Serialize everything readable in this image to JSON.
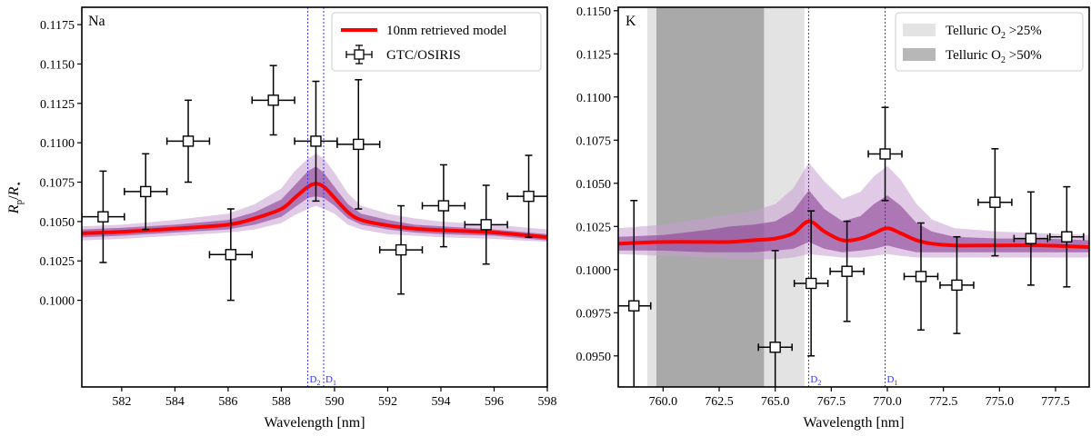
{
  "chart_data": [
    {
      "type": "line",
      "panel_label": "Na",
      "xlabel": "Wavelength [nm]",
      "ylabel_main": "R",
      "ylabel_sub_p": "p",
      "ylabel_div": "/",
      "ylabel_main2": "R",
      "ylabel_sub_star": "⋆",
      "xlim": [
        580.5,
        598.0
      ],
      "ylim": [
        0.0945,
        0.1186
      ],
      "xticks": [
        582,
        584,
        586,
        588,
        590,
        592,
        594,
        596,
        598
      ],
      "yticks": [
        0.1,
        0.1025,
        0.105,
        0.1075,
        0.11,
        0.1125,
        0.115,
        0.1175
      ],
      "ytick_labels": [
        "0.1000",
        "0.1025",
        "0.1050",
        "0.1075",
        "0.1100",
        "0.1125",
        "0.1150",
        "0.1175"
      ],
      "vlines": [
        {
          "x": 588.995,
          "label": "D",
          "sub": "2"
        },
        {
          "x": 589.592,
          "label": "D",
          "sub": "1"
        }
      ],
      "legend": {
        "position": "top-right",
        "entries": [
          {
            "label": "10nm retrieved model",
            "kind": "line",
            "color": "#ff0000"
          },
          {
            "label": "GTC/OSIRIS",
            "kind": "errorbar"
          }
        ]
      },
      "model": {
        "x": [
          580.5,
          582,
          584,
          586,
          587,
          588,
          588.5,
          589,
          589.3,
          589.6,
          590,
          590.5,
          591,
          592,
          593,
          594,
          596,
          598
        ],
        "y": [
          0.10425,
          0.10435,
          0.10455,
          0.1048,
          0.1052,
          0.1058,
          0.1065,
          0.1072,
          0.1074,
          0.1072,
          0.1065,
          0.1056,
          0.1051,
          0.10475,
          0.10455,
          0.10445,
          0.1043,
          0.104
        ],
        "sig1_lo": [
          0.104,
          0.1041,
          0.1043,
          0.1045,
          0.1048,
          0.1053,
          0.1059,
          0.1065,
          0.1066,
          0.1065,
          0.106,
          0.1052,
          0.1048,
          0.1045,
          0.1043,
          0.1042,
          0.1041,
          0.1038
        ],
        "sig1_hi": [
          0.1045,
          0.1046,
          0.1048,
          0.1051,
          0.1056,
          0.1064,
          0.1073,
          0.1082,
          0.1085,
          0.1081,
          0.1072,
          0.1061,
          0.1055,
          0.1051,
          0.1048,
          0.1047,
          0.1045,
          0.1042
        ],
        "sig2_lo": [
          0.1038,
          0.1039,
          0.1041,
          0.1043,
          0.1045,
          0.1049,
          0.1054,
          0.1058,
          0.106,
          0.1058,
          0.1055,
          0.1048,
          0.1045,
          0.1042,
          0.1041,
          0.104,
          0.1039,
          0.1037
        ],
        "sig2_hi": [
          0.1047,
          0.1048,
          0.1051,
          0.1055,
          0.1061,
          0.1071,
          0.1082,
          0.109,
          0.1093,
          0.109,
          0.1081,
          0.1068,
          0.106,
          0.1055,
          0.1052,
          0.105,
          0.1048,
          0.1045
        ]
      },
      "points": [
        {
          "x": 581.3,
          "y": 0.1053,
          "xerr": 0.8,
          "yerr": 0.0029
        },
        {
          "x": 582.9,
          "y": 0.1069,
          "xerr": 0.8,
          "yerr": 0.0024
        },
        {
          "x": 584.5,
          "y": 0.1101,
          "xerr": 0.8,
          "yerr": 0.0026
        },
        {
          "x": 586.1,
          "y": 0.1029,
          "xerr": 0.8,
          "yerr": 0.0029
        },
        {
          "x": 587.7,
          "y": 0.1127,
          "xerr": 0.8,
          "yerr": 0.0022
        },
        {
          "x": 589.3,
          "y": 0.1101,
          "xerr": 0.8,
          "yerr": 0.0038
        },
        {
          "x": 590.9,
          "y": 0.1099,
          "xerr": 0.8,
          "yerr": 0.0041
        },
        {
          "x": 592.5,
          "y": 0.1032,
          "xerr": 0.8,
          "yerr": 0.0028
        },
        {
          "x": 594.1,
          "y": 0.106,
          "xerr": 0.8,
          "yerr": 0.0026
        },
        {
          "x": 595.7,
          "y": 0.1048,
          "xerr": 0.8,
          "yerr": 0.0025
        },
        {
          "x": 597.3,
          "y": 0.1066,
          "xerr": 0.8,
          "yerr": 0.0026
        }
      ]
    },
    {
      "type": "line",
      "panel_label": "K",
      "xlabel": "Wavelength [nm]",
      "xlim": [
        758.0,
        779.0
      ],
      "ylim": [
        0.0932,
        0.1152
      ],
      "xticks": [
        760,
        762.5,
        765,
        767.5,
        770,
        772.5,
        775,
        777.5
      ],
      "xtick_labels": [
        "760.0",
        "762.5",
        "765.0",
        "767.5",
        "770.0",
        "772.5",
        "775.0",
        "777.5"
      ],
      "yticks": [
        0.095,
        0.0975,
        0.1,
        0.1025,
        0.105,
        0.1075,
        0.11,
        0.1125,
        0.115
      ],
      "ytick_labels": [
        "0.0950",
        "0.0975",
        "0.1000",
        "0.1025",
        "0.1050",
        "0.1075",
        "0.1100",
        "0.1125",
        "0.1150"
      ],
      "vlines": [
        {
          "x": 766.49,
          "label": "D",
          "sub": "2"
        },
        {
          "x": 769.9,
          "label": "D",
          "sub": "1"
        }
      ],
      "telluric_bands": [
        {
          "x0": 759.3,
          "x1": 766.3,
          "level": ">25%",
          "color": "#e3e3e3"
        },
        {
          "x0": 759.7,
          "x1": 764.5,
          "level": ">50%",
          "color": "#a9a9a9"
        }
      ],
      "legend": {
        "position": "top-right",
        "entries": [
          {
            "label_main": "Telluric O",
            "label_sub": "2",
            "label_tail": " >25%",
            "color": "#e3e3e3"
          },
          {
            "label_main": "Telluric O",
            "label_sub": "2",
            "label_tail": " >50%",
            "color": "#b7b7b7"
          }
        ]
      },
      "model": {
        "x": [
          758,
          760,
          762,
          763,
          764,
          765,
          765.8,
          766.5,
          767.2,
          768,
          768.8,
          769.4,
          770,
          770.6,
          771.3,
          772,
          773,
          775,
          777,
          779
        ],
        "y": [
          0.1015,
          0.1016,
          0.1016,
          0.1016,
          0.1017,
          0.1018,
          0.1021,
          0.1028,
          0.1022,
          0.1017,
          0.1018,
          0.1021,
          0.1024,
          0.1021,
          0.1017,
          0.1015,
          0.1014,
          0.1014,
          0.1014,
          0.1013
        ],
        "sig1_lo": [
          0.1011,
          0.1011,
          0.101,
          0.101,
          0.101,
          0.1011,
          0.1012,
          0.1016,
          0.1012,
          0.101,
          0.1011,
          0.1012,
          0.1014,
          0.1012,
          0.101,
          0.101,
          0.101,
          0.101,
          0.101,
          0.101
        ],
        "sig1_hi": [
          0.1019,
          0.102,
          0.1023,
          0.1025,
          0.1026,
          0.1028,
          0.1034,
          0.1046,
          0.1035,
          0.1028,
          0.1031,
          0.1038,
          0.1043,
          0.1037,
          0.1027,
          0.1022,
          0.1019,
          0.1018,
          0.1018,
          0.1017
        ],
        "sig2_lo": [
          0.1009,
          0.1008,
          0.1007,
          0.1006,
          0.1006,
          0.1006,
          0.1007,
          0.1009,
          0.1008,
          0.1007,
          0.1007,
          0.1008,
          0.1009,
          0.1008,
          0.1007,
          0.1007,
          0.1007,
          0.1007,
          0.1007,
          0.1007
        ],
        "sig2_hi": [
          0.1024,
          0.1026,
          0.103,
          0.1032,
          0.1034,
          0.1038,
          0.1047,
          0.1062,
          0.1051,
          0.1041,
          0.1045,
          0.1054,
          0.106,
          0.1052,
          0.1038,
          0.1029,
          0.1024,
          0.1022,
          0.1021,
          0.102
        ]
      },
      "points": [
        {
          "x": 758.7,
          "y": 0.0979,
          "xerr": 0.75,
          "yerr": 0.0061
        },
        {
          "x": 765.0,
          "y": 0.0955,
          "xerr": 0.75,
          "yerr": 0.0056
        },
        {
          "x": 766.6,
          "y": 0.0992,
          "xerr": 0.75,
          "yerr": 0.0042
        },
        {
          "x": 768.2,
          "y": 0.0999,
          "xerr": 0.75,
          "yerr": 0.0029
        },
        {
          "x": 769.9,
          "y": 0.1067,
          "xerr": 0.75,
          "yerr": 0.0027
        },
        {
          "x": 771.5,
          "y": 0.0996,
          "xerr": 0.75,
          "yerr": 0.0031
        },
        {
          "x": 773.1,
          "y": 0.0991,
          "xerr": 0.75,
          "yerr": 0.0028
        },
        {
          "x": 774.8,
          "y": 0.1039,
          "xerr": 0.75,
          "yerr": 0.0031
        },
        {
          "x": 776.4,
          "y": 0.1018,
          "xerr": 0.75,
          "yerr": 0.0027
        },
        {
          "x": 778.0,
          "y": 0.1019,
          "xerr": 0.75,
          "yerr": 0.0029
        }
      ]
    }
  ],
  "colors": {
    "model_line": "#ff0000",
    "sigma1": "#8b3f94",
    "sigma2": "#c99ed1",
    "vline": "#3333ff",
    "axes": "#000000"
  }
}
